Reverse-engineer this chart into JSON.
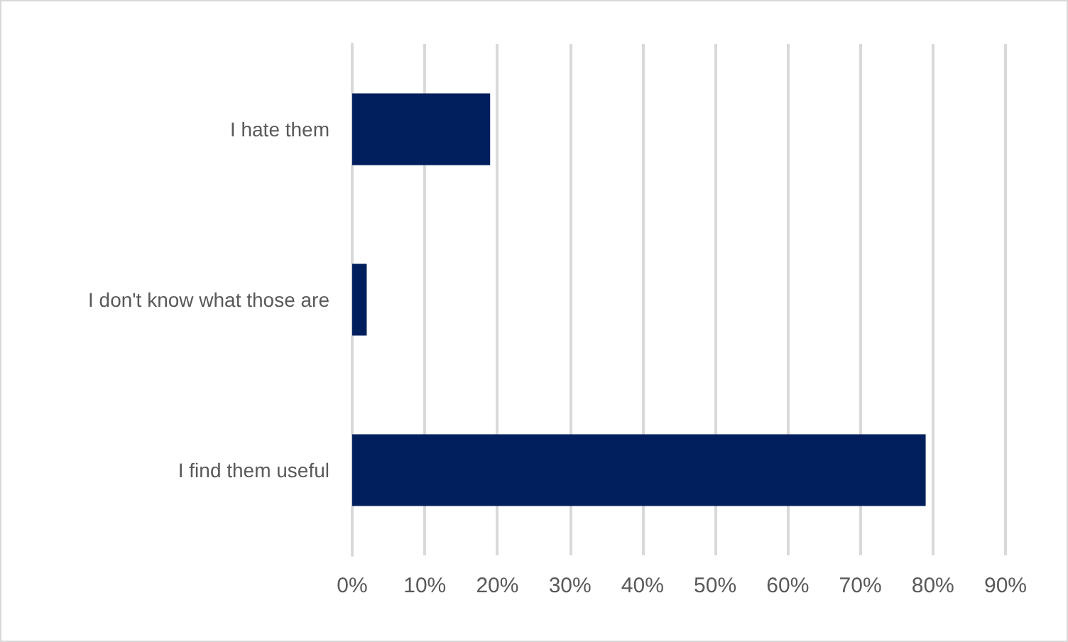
{
  "chart_data": {
    "type": "bar",
    "orientation": "horizontal",
    "categories": [
      "I hate them",
      "I don't know what those are",
      "I find them useful"
    ],
    "values": [
      19,
      2,
      79
    ],
    "color": "#001f5c",
    "xlim": [
      0,
      90
    ],
    "xticks": [
      {
        "value": 0,
        "label": "0%"
      },
      {
        "value": 10,
        "label": "10%"
      },
      {
        "value": 20,
        "label": "20%"
      },
      {
        "value": 30,
        "label": "30%"
      },
      {
        "value": 40,
        "label": "40%"
      },
      {
        "value": 50,
        "label": "50%"
      },
      {
        "value": 60,
        "label": "60%"
      },
      {
        "value": 70,
        "label": "70%"
      },
      {
        "value": 80,
        "label": "80%"
      },
      {
        "value": 90,
        "label": "90%"
      }
    ],
    "grid": "x"
  }
}
